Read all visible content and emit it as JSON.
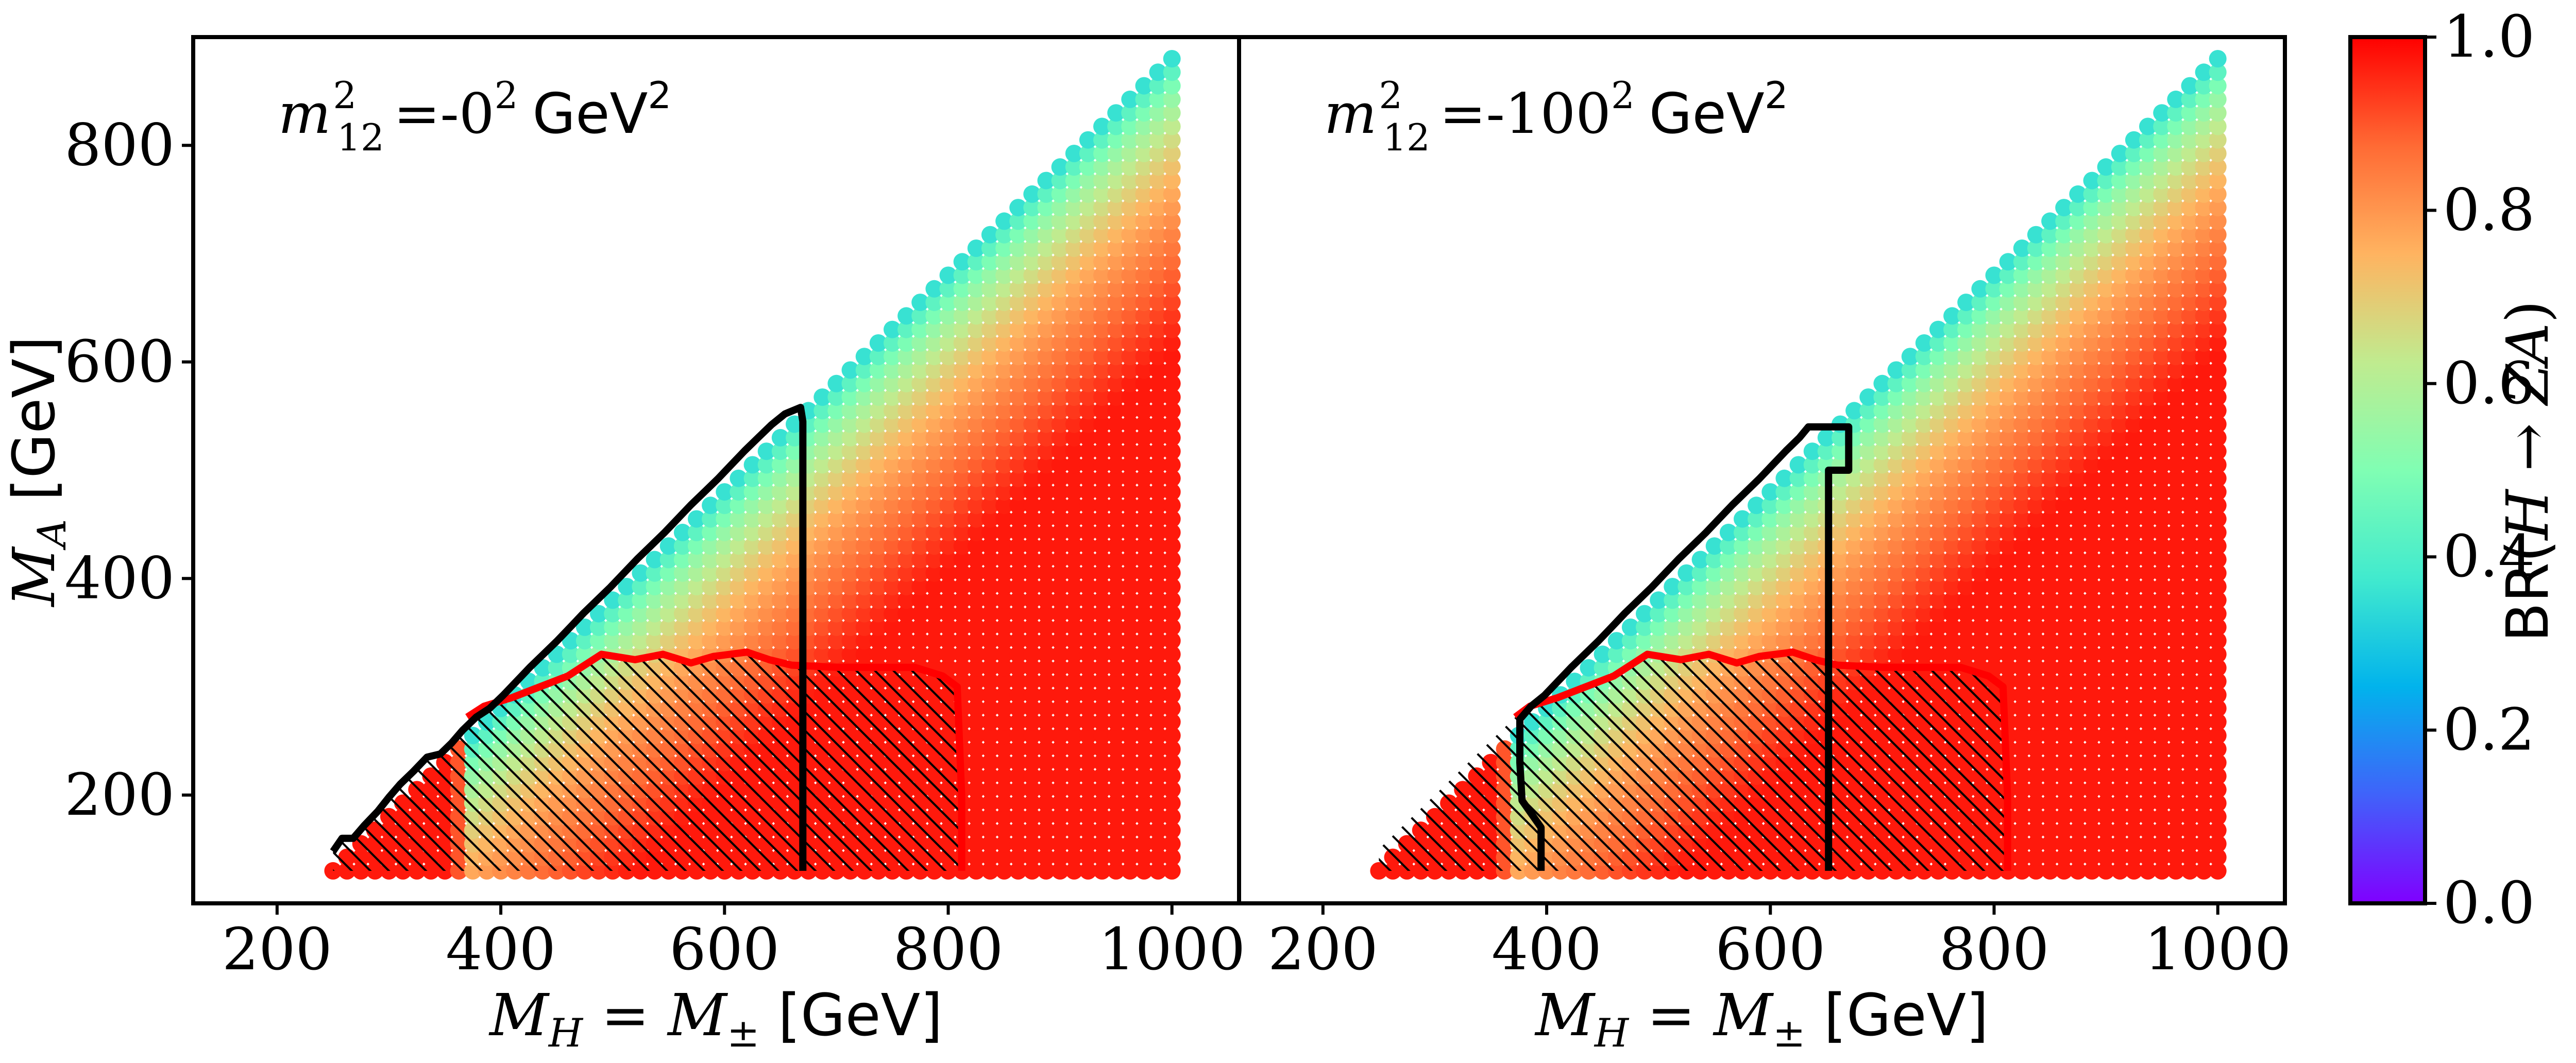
{
  "chart_data": [
    {
      "type": "scatter",
      "panel": "left",
      "annotation": "m²₁₂ = -0² GeV²",
      "annotation_parts": {
        "symbol": "m",
        "sup": "2",
        "sub": "12",
        "eq": "=-0",
        "eq_sup": "2",
        "unit": "GeV",
        "unit_sup": "2"
      },
      "xlabel": "M_H = M_± [GeV]",
      "xlabel_parts": {
        "a": "M",
        "a_sub": "H",
        "eq": " = ",
        "b": "M",
        "b_sub": "±",
        "unit": " [GeV]"
      },
      "ylabel": "M_A [GeV]",
      "ylabel_parts": {
        "a": "M",
        "a_sub": "A",
        "unit": " [GeV]"
      },
      "xlim": [
        125,
        1060
      ],
      "ylim": [
        100,
        900
      ],
      "xticks": [
        "200",
        "400",
        "600",
        "800",
        "1000"
      ],
      "xtick_values": [
        200,
        400,
        600,
        800,
        1000
      ],
      "yticks": [
        "200",
        "400",
        "600",
        "800"
      ],
      "ytick_values": [
        200,
        400,
        600,
        800
      ],
      "grid": {
        "x_start": 250,
        "x_end": 1000,
        "x_step": 12.5,
        "y_start": 130,
        "y_step": 12.5,
        "max_y_offset": -110
      },
      "black_contour": [
        [
          250,
          148
        ],
        [
          258,
          160
        ],
        [
          268,
          160
        ],
        [
          278,
          172
        ],
        [
          290,
          185
        ],
        [
          300,
          198
        ],
        [
          310,
          210
        ],
        [
          322,
          222
        ],
        [
          334,
          235
        ],
        [
          346,
          238
        ],
        [
          356,
          248
        ],
        [
          366,
          260
        ],
        [
          378,
          272
        ],
        [
          390,
          280
        ],
        [
          402,
          292
        ],
        [
          414,
          305
        ],
        [
          426,
          318
        ],
        [
          438,
          330
        ],
        [
          450,
          342
        ],
        [
          462,
          355
        ],
        [
          474,
          368
        ],
        [
          486,
          380
        ],
        [
          498,
          392
        ],
        [
          510,
          405
        ],
        [
          522,
          418
        ],
        [
          534,
          430
        ],
        [
          546,
          442
        ],
        [
          558,
          455
        ],
        [
          570,
          468
        ],
        [
          582,
          480
        ],
        [
          594,
          492
        ],
        [
          606,
          505
        ],
        [
          618,
          518
        ],
        [
          630,
          530
        ],
        [
          642,
          542
        ],
        [
          654,
          552
        ],
        [
          668,
          558
        ],
        [
          670,
          545
        ],
        [
          670,
          130
        ]
      ],
      "red_contour": [
        [
          370,
          272
        ],
        [
          385,
          282
        ],
        [
          410,
          290
        ],
        [
          430,
          298
        ],
        [
          460,
          310
        ],
        [
          490,
          330
        ],
        [
          520,
          325
        ],
        [
          545,
          330
        ],
        [
          570,
          322
        ],
        [
          590,
          328
        ],
        [
          620,
          332
        ],
        [
          640,
          325
        ],
        [
          660,
          320
        ],
        [
          700,
          318
        ],
        [
          740,
          318
        ],
        [
          770,
          318
        ],
        [
          795,
          310
        ],
        [
          808,
          300
        ],
        [
          810,
          250
        ],
        [
          812,
          200
        ],
        [
          812,
          130
        ]
      ],
      "hatch_region": "inside red contour, x < 812 GeV, lower-left"
    },
    {
      "type": "scatter",
      "panel": "right",
      "annotation": "m²₁₂ = -100² GeV²",
      "annotation_parts": {
        "symbol": "m",
        "sup": "2",
        "sub": "12",
        "eq": "=-100",
        "eq_sup": "2",
        "unit": "GeV",
        "unit_sup": "2"
      },
      "xlabel": "M_H = M_± [GeV]",
      "xlabel_parts": {
        "a": "M",
        "a_sub": "H",
        "eq": " = ",
        "b": "M",
        "b_sub": "±",
        "unit": " [GeV]"
      },
      "xlim": [
        125,
        1060
      ],
      "ylim": [
        100,
        900
      ],
      "xticks": [
        "200",
        "400",
        "600",
        "800",
        "1000"
      ],
      "xtick_values": [
        200,
        400,
        600,
        800,
        1000
      ],
      "grid": {
        "x_start": 250,
        "x_end": 1000,
        "x_step": 12.5,
        "y_start": 130,
        "y_step": 12.5,
        "max_y_offset": -110
      },
      "black_contour": [
        [
          395,
          130
        ],
        [
          395,
          170
        ],
        [
          378,
          195
        ],
        [
          376,
          230
        ],
        [
          376,
          270
        ],
        [
          386,
          282
        ],
        [
          398,
          292
        ],
        [
          410,
          305
        ],
        [
          422,
          318
        ],
        [
          434,
          330
        ],
        [
          446,
          342
        ],
        [
          458,
          355
        ],
        [
          470,
          368
        ],
        [
          482,
          380
        ],
        [
          494,
          392
        ],
        [
          506,
          405
        ],
        [
          518,
          418
        ],
        [
          530,
          430
        ],
        [
          542,
          442
        ],
        [
          554,
          455
        ],
        [
          566,
          468
        ],
        [
          578,
          480
        ],
        [
          590,
          492
        ],
        [
          602,
          505
        ],
        [
          614,
          518
        ],
        [
          626,
          530
        ],
        [
          634,
          540
        ],
        [
          670,
          540
        ],
        [
          670,
          500
        ],
        [
          652,
          500
        ],
        [
          652,
          130
        ]
      ],
      "red_contour": [
        [
          372,
          272
        ],
        [
          385,
          282
        ],
        [
          410,
          290
        ],
        [
          430,
          298
        ],
        [
          460,
          310
        ],
        [
          490,
          330
        ],
        [
          520,
          325
        ],
        [
          545,
          330
        ],
        [
          570,
          322
        ],
        [
          590,
          328
        ],
        [
          620,
          332
        ],
        [
          640,
          325
        ],
        [
          660,
          320
        ],
        [
          700,
          318
        ],
        [
          740,
          318
        ],
        [
          770,
          318
        ],
        [
          795,
          310
        ],
        [
          808,
          300
        ],
        [
          810,
          250
        ],
        [
          812,
          200
        ],
        [
          812,
          130
        ]
      ],
      "hatch_region": "inside red contour, x < 812 GeV, lower-left"
    }
  ],
  "colorbar": {
    "label": "BR(H → ZA)",
    "label_parts": {
      "a": "BR(",
      "b": "H",
      "c": " → ",
      "d": "ZA",
      "e": ")"
    },
    "range": [
      0.0,
      1.0
    ],
    "ticks": [
      "0.0",
      "0.2",
      "0.4",
      "0.6",
      "0.8",
      "1.0"
    ],
    "tick_values": [
      0.0,
      0.2,
      0.4,
      0.6,
      0.8,
      1.0
    ],
    "colormap": "rainbow",
    "colormap_stops": [
      "#8000ff",
      "#4062fa",
      "#01b3ec",
      "#41eace",
      "#80feb3",
      "#c0eb8f",
      "#ffb360",
      "#ff6a34",
      "#ff0000"
    ]
  },
  "colors": {
    "black_contour": "#000000",
    "red_contour": "#ff0000",
    "hatch": "#000000"
  }
}
